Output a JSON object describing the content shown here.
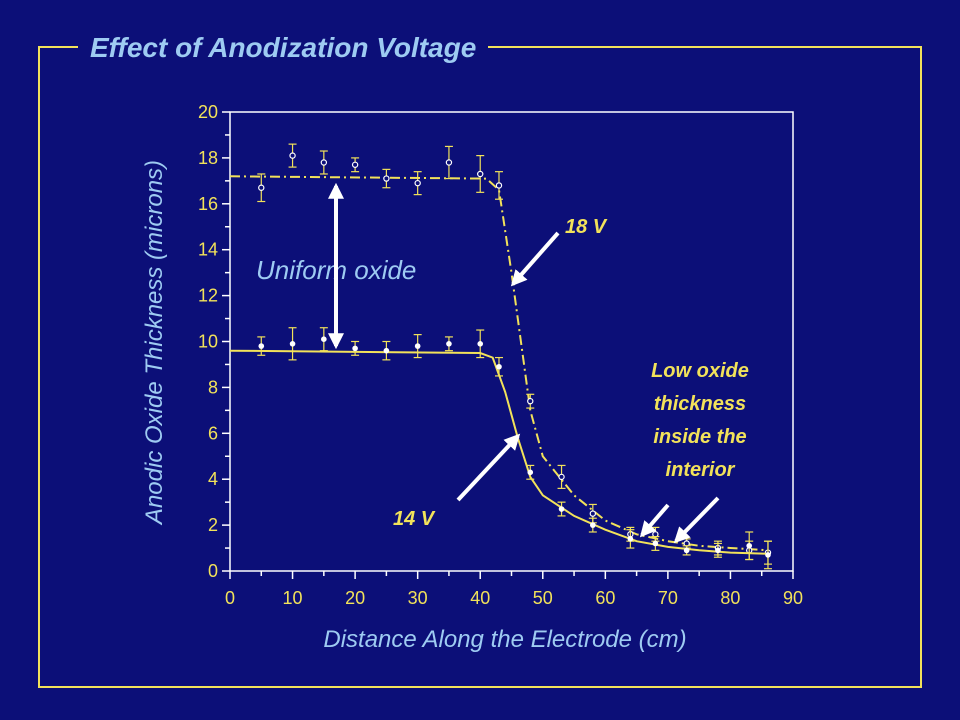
{
  "title": "Effect of Anodization Voltage",
  "colors": {
    "background": "#0c0f78",
    "accent": "#f2e25a",
    "label": "#9ecbf2",
    "arrow": "#ffffff"
  },
  "annotations": {
    "uniform": "Uniform oxide",
    "v18": "18 V",
    "v14": "14 V",
    "low": [
      "Low oxide",
      "thickness",
      "inside the",
      "interior"
    ]
  },
  "chart_data": {
    "type": "line",
    "xlabel": "Distance Along the Electrode (cm)",
    "ylabel": "Anodic Oxide Thickness (microns)",
    "xlim": [
      0,
      90
    ],
    "ylim": [
      0,
      20
    ],
    "xticks": [
      0,
      10,
      20,
      30,
      40,
      50,
      60,
      70,
      80,
      90
    ],
    "yticks": [
      0,
      2,
      4,
      6,
      8,
      10,
      12,
      14,
      16,
      18,
      20
    ],
    "grid": false,
    "series": [
      {
        "name": "18 V",
        "style": "dash-dot",
        "points": [
          {
            "x": 5,
            "y": 16.7,
            "err": 0.6
          },
          {
            "x": 10,
            "y": 18.1,
            "err": 0.5
          },
          {
            "x": 15,
            "y": 17.8,
            "err": 0.5
          },
          {
            "x": 20,
            "y": 17.7,
            "err": 0.3
          },
          {
            "x": 25,
            "y": 17.1,
            "err": 0.4
          },
          {
            "x": 30,
            "y": 16.9,
            "err": 0.5
          },
          {
            "x": 35,
            "y": 17.8,
            "err": 0.7
          },
          {
            "x": 40,
            "y": 17.3,
            "err": 0.8
          },
          {
            "x": 43,
            "y": 16.8,
            "err": 0.6
          },
          {
            "x": 48,
            "y": 7.4,
            "err": 0.3
          },
          {
            "x": 53,
            "y": 4.1,
            "err": 0.5
          },
          {
            "x": 58,
            "y": 2.5,
            "err": 0.4
          },
          {
            "x": 64,
            "y": 1.6,
            "err": 0.3
          },
          {
            "x": 68,
            "y": 1.6,
            "err": 0.3
          },
          {
            "x": 73,
            "y": 1.2,
            "err": 0.2
          },
          {
            "x": 78,
            "y": 1.0,
            "err": 0.3
          },
          {
            "x": 83,
            "y": 0.9,
            "err": 0.4
          },
          {
            "x": 86,
            "y": 0.8,
            "err": 0.5
          }
        ],
        "curve": [
          [
            0,
            17.2
          ],
          [
            41,
            17.1
          ],
          [
            43,
            16.6
          ],
          [
            45,
            13.0
          ],
          [
            46.5,
            10.0
          ],
          [
            48,
            7.0
          ],
          [
            50,
            5.0
          ],
          [
            55,
            3.3
          ],
          [
            60,
            2.2
          ],
          [
            65,
            1.6
          ],
          [
            70,
            1.3
          ],
          [
            75,
            1.1
          ],
          [
            80,
            1.0
          ],
          [
            86,
            0.9
          ]
        ]
      },
      {
        "name": "14 V",
        "style": "solid",
        "points": [
          {
            "x": 5,
            "y": 9.8,
            "err": 0.4
          },
          {
            "x": 10,
            "y": 9.9,
            "err": 0.7
          },
          {
            "x": 15,
            "y": 10.1,
            "err": 0.5
          },
          {
            "x": 20,
            "y": 9.7,
            "err": 0.3
          },
          {
            "x": 25,
            "y": 9.6,
            "err": 0.4
          },
          {
            "x": 30,
            "y": 9.8,
            "err": 0.5
          },
          {
            "x": 35,
            "y": 9.9,
            "err": 0.3
          },
          {
            "x": 40,
            "y": 9.9,
            "err": 0.6
          },
          {
            "x": 43,
            "y": 8.9,
            "err": 0.4
          },
          {
            "x": 48,
            "y": 4.3,
            "err": 0.3
          },
          {
            "x": 53,
            "y": 2.7,
            "err": 0.3
          },
          {
            "x": 58,
            "y": 2.0,
            "err": 0.3
          },
          {
            "x": 64,
            "y": 1.4,
            "err": 0.4
          },
          {
            "x": 68,
            "y": 1.2,
            "err": 0.3
          },
          {
            "x": 73,
            "y": 0.9,
            "err": 0.2
          },
          {
            "x": 78,
            "y": 0.9,
            "err": 0.3
          },
          {
            "x": 83,
            "y": 1.1,
            "err": 0.6
          },
          {
            "x": 86,
            "y": 0.7,
            "err": 0.6
          }
        ],
        "curve": [
          [
            0,
            9.6
          ],
          [
            40,
            9.5
          ],
          [
            42,
            9.3
          ],
          [
            44,
            7.8
          ],
          [
            46,
            5.8
          ],
          [
            48,
            4.1
          ],
          [
            50,
            3.3
          ],
          [
            55,
            2.4
          ],
          [
            60,
            1.8
          ],
          [
            65,
            1.3
          ],
          [
            70,
            1.05
          ],
          [
            75,
            0.9
          ],
          [
            80,
            0.8
          ],
          [
            86,
            0.75
          ]
        ]
      }
    ]
  }
}
